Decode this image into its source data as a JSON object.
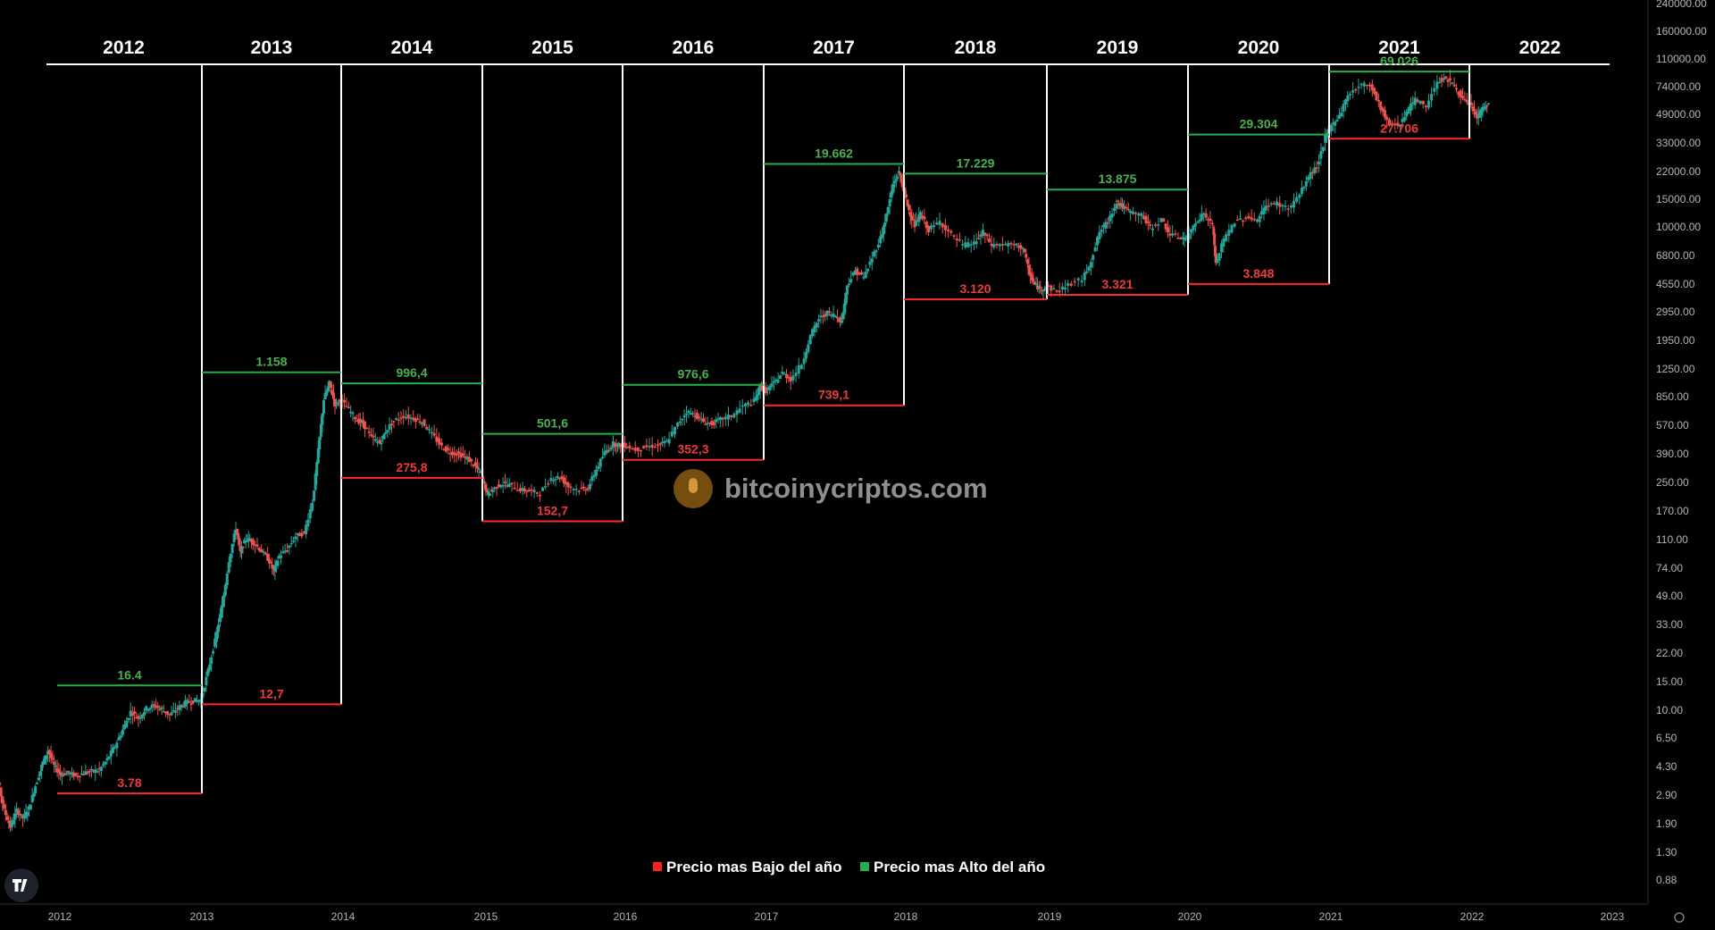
{
  "chart_data": {
    "type": "candlestick",
    "scale": "log",
    "watermark": "bitcoinycriptos.com",
    "legend": [
      {
        "label": "Precio mas Bajo del año",
        "color": "#ff1f1f"
      },
      {
        "label": "Precio mas Alto del año",
        "color": "#22b14c"
      }
    ],
    "y_ticks": [
      "240000.00",
      "160000.00",
      "110000.00",
      "74000.00",
      "49000.00",
      "33000.00",
      "22000.00",
      "15000.00",
      "10000.00",
      "6800.00",
      "4550.00",
      "2950.00",
      "1950.00",
      "1250.00",
      "850.00",
      "570.00",
      "390.00",
      "250.00",
      "170.00",
      "110.00",
      "74.00",
      "49.00",
      "33.00",
      "22.00",
      "15.00",
      "10.00",
      "6.50",
      "4.30",
      "2.90",
      "1.90",
      "1.30",
      "0.88"
    ],
    "x_ticks": [
      "2012",
      "2013",
      "2014",
      "2015",
      "2016",
      "2017",
      "2018",
      "2019",
      "2020",
      "2021",
      "2022",
      "2023"
    ],
    "years": [
      {
        "year": "2012",
        "high": 16.4,
        "low": 3.78,
        "high_label": "16.4",
        "low_label": "3.78"
      },
      {
        "year": "2013",
        "high": 1158,
        "low": 12.7,
        "high_label": "1.158",
        "low_label": "12,7"
      },
      {
        "year": "2014",
        "high": 996.4,
        "low": 275.8,
        "high_label": "996,4",
        "low_label": "275,8"
      },
      {
        "year": "2015",
        "high": 501.6,
        "low": 152.7,
        "high_label": "501,6",
        "low_label": "152,7"
      },
      {
        "year": "2016",
        "high": 976.6,
        "low": 352.3,
        "high_label": "976,6",
        "low_label": "352,3"
      },
      {
        "year": "2017",
        "high": 19662,
        "low": 739.1,
        "high_label": "19.662",
        "low_label": "739,1"
      },
      {
        "year": "2018",
        "high": 17229,
        "low": 3120,
        "high_label": "17.229",
        "low_label": "3.120"
      },
      {
        "year": "2019",
        "high": 13875,
        "low": 3321,
        "high_label": "13.875",
        "low_label": "3.321"
      },
      {
        "year": "2020",
        "high": 29304,
        "low": 3848,
        "high_label": "29.304",
        "low_label": "3.848"
      },
      {
        "year": "2021",
        "high": 69026,
        "low": 27706,
        "high_label": "69.026",
        "low_label": "27.706"
      },
      {
        "year": "2022",
        "high": null,
        "low": null,
        "high_label": "",
        "low_label": ""
      }
    ],
    "price_path": [
      [
        2011.62,
        12
      ],
      [
        2011.66,
        6
      ],
      [
        2011.7,
        4.5
      ],
      [
        2011.74,
        3
      ],
      [
        2011.78,
        2.4
      ],
      [
        2011.82,
        3.0
      ],
      [
        2011.86,
        2.7
      ],
      [
        2011.9,
        3.1
      ],
      [
        2011.94,
        4.2
      ],
      [
        2011.98,
        5.5
      ],
      [
        2012.02,
        6.8
      ],
      [
        2012.06,
        5.5
      ],
      [
        2012.1,
        4.9
      ],
      [
        2012.15,
        5.0
      ],
      [
        2012.2,
        4.8
      ],
      [
        2012.25,
        5.0
      ],
      [
        2012.3,
        5.1
      ],
      [
        2012.35,
        5.2
      ],
      [
        2012.4,
        6.0
      ],
      [
        2012.45,
        7.2
      ],
      [
        2012.5,
        9.0
      ],
      [
        2012.55,
        11.5
      ],
      [
        2012.6,
        10.5
      ],
      [
        2012.65,
        12
      ],
      [
        2012.7,
        12.5
      ],
      [
        2012.75,
        11.8
      ],
      [
        2012.8,
        11.0
      ],
      [
        2012.85,
        12.0
      ],
      [
        2012.9,
        13.0
      ],
      [
        2012.95,
        13.3
      ],
      [
        2013.0,
        13.5
      ],
      [
        2013.05,
        20
      ],
      [
        2013.1,
        30
      ],
      [
        2013.15,
        48
      ],
      [
        2013.2,
        90
      ],
      [
        2013.25,
        140
      ],
      [
        2013.28,
        100
      ],
      [
        2013.32,
        120
      ],
      [
        2013.36,
        118
      ],
      [
        2013.42,
        105
      ],
      [
        2013.48,
        92
      ],
      [
        2013.52,
        78
      ],
      [
        2013.56,
        95
      ],
      [
        2013.62,
        105
      ],
      [
        2013.68,
        125
      ],
      [
        2013.74,
        130
      ],
      [
        2013.8,
        200
      ],
      [
        2013.84,
        400
      ],
      [
        2013.88,
        800
      ],
      [
        2013.92,
        1000
      ],
      [
        2013.96,
        750
      ],
      [
        2014.0,
        800
      ],
      [
        2014.06,
        700
      ],
      [
        2014.12,
        600
      ],
      [
        2014.16,
        580
      ],
      [
        2014.22,
        480
      ],
      [
        2014.28,
        440
      ],
      [
        2014.32,
        520
      ],
      [
        2014.38,
        600
      ],
      [
        2014.45,
        640
      ],
      [
        2014.52,
        620
      ],
      [
        2014.58,
        590
      ],
      [
        2014.65,
        500
      ],
      [
        2014.72,
        420
      ],
      [
        2014.78,
        390
      ],
      [
        2014.84,
        380
      ],
      [
        2014.9,
        360
      ],
      [
        2014.96,
        320
      ],
      [
        2015.0,
        290
      ],
      [
        2015.04,
        220
      ],
      [
        2015.08,
        235
      ],
      [
        2015.14,
        255
      ],
      [
        2015.2,
        250
      ],
      [
        2015.28,
        235
      ],
      [
        2015.34,
        230
      ],
      [
        2015.42,
        225
      ],
      [
        2015.5,
        275
      ],
      [
        2015.56,
        280
      ],
      [
        2015.62,
        245
      ],
      [
        2015.7,
        235
      ],
      [
        2015.76,
        240
      ],
      [
        2015.82,
        310
      ],
      [
        2015.88,
        390
      ],
      [
        2015.94,
        440
      ],
      [
        2015.98,
        430
      ],
      [
        2016.02,
        430
      ],
      [
        2016.1,
        405
      ],
      [
        2016.18,
        420
      ],
      [
        2016.26,
        430
      ],
      [
        2016.32,
        450
      ],
      [
        2016.4,
        575
      ],
      [
        2016.46,
        680
      ],
      [
        2016.52,
        650
      ],
      [
        2016.58,
        590
      ],
      [
        2016.64,
        575
      ],
      [
        2016.7,
        610
      ],
      [
        2016.78,
        640
      ],
      [
        2016.86,
        730
      ],
      [
        2016.94,
        780
      ],
      [
        2016.98,
        960
      ],
      [
        2017.02,
        900
      ],
      [
        2017.08,
        1000
      ],
      [
        2017.14,
        1150
      ],
      [
        2017.2,
        1050
      ],
      [
        2017.28,
        1300
      ],
      [
        2017.34,
        1900
      ],
      [
        2017.4,
        2400
      ],
      [
        2017.46,
        2600
      ],
      [
        2017.52,
        2500
      ],
      [
        2017.56,
        2300
      ],
      [
        2017.6,
        3800
      ],
      [
        2017.66,
        4600
      ],
      [
        2017.72,
        4200
      ],
      [
        2017.78,
        5500
      ],
      [
        2017.84,
        7200
      ],
      [
        2017.88,
        9800
      ],
      [
        2017.93,
        15000
      ],
      [
        2017.97,
        17500
      ],
      [
        2018.0,
        14000
      ],
      [
        2018.04,
        10500
      ],
      [
        2018.08,
        8500
      ],
      [
        2018.12,
        10000
      ],
      [
        2018.18,
        8000
      ],
      [
        2018.26,
        9000
      ],
      [
        2018.34,
        7500
      ],
      [
        2018.42,
        6500
      ],
      [
        2018.5,
        6700
      ],
      [
        2018.56,
        7800
      ],
      [
        2018.62,
        6500
      ],
      [
        2018.7,
        6600
      ],
      [
        2018.78,
        6500
      ],
      [
        2018.84,
        6300
      ],
      [
        2018.88,
        4500
      ],
      [
        2018.92,
        3800
      ],
      [
        2018.96,
        3600
      ],
      [
        2019.0,
        3700
      ],
      [
        2019.08,
        3500
      ],
      [
        2019.16,
        3800
      ],
      [
        2019.26,
        4100
      ],
      [
        2019.32,
        5300
      ],
      [
        2019.38,
        7800
      ],
      [
        2019.44,
        9000
      ],
      [
        2019.5,
        11800
      ],
      [
        2019.54,
        11000
      ],
      [
        2019.6,
        10200
      ],
      [
        2019.68,
        9800
      ],
      [
        2019.74,
        8200
      ],
      [
        2019.82,
        9200
      ],
      [
        2019.88,
        7500
      ],
      [
        2019.96,
        7200
      ],
      [
        2020.0,
        7200
      ],
      [
        2020.06,
        9000
      ],
      [
        2020.12,
        10000
      ],
      [
        2020.18,
        8500
      ],
      [
        2020.2,
        5000
      ],
      [
        2020.26,
        7000
      ],
      [
        2020.34,
        9000
      ],
      [
        2020.42,
        9500
      ],
      [
        2020.5,
        9200
      ],
      [
        2020.56,
        11200
      ],
      [
        2020.64,
        11500
      ],
      [
        2020.72,
        10700
      ],
      [
        2020.8,
        13000
      ],
      [
        2020.86,
        16500
      ],
      [
        2020.92,
        19000
      ],
      [
        2020.98,
        28000
      ],
      [
        2021.02,
        33000
      ],
      [
        2021.08,
        38000
      ],
      [
        2021.14,
        50000
      ],
      [
        2021.22,
        57000
      ],
      [
        2021.3,
        58000
      ],
      [
        2021.36,
        45000
      ],
      [
        2021.42,
        35000
      ],
      [
        2021.5,
        33000
      ],
      [
        2021.56,
        40000
      ],
      [
        2021.62,
        47000
      ],
      [
        2021.7,
        43000
      ],
      [
        2021.78,
        61000
      ],
      [
        2021.84,
        63000
      ],
      [
        2021.9,
        57000
      ],
      [
        2021.96,
        47000
      ],
      [
        2022.02,
        43000
      ],
      [
        2022.06,
        37000
      ],
      [
        2022.1,
        42000
      ],
      [
        2022.14,
        44000
      ]
    ]
  }
}
